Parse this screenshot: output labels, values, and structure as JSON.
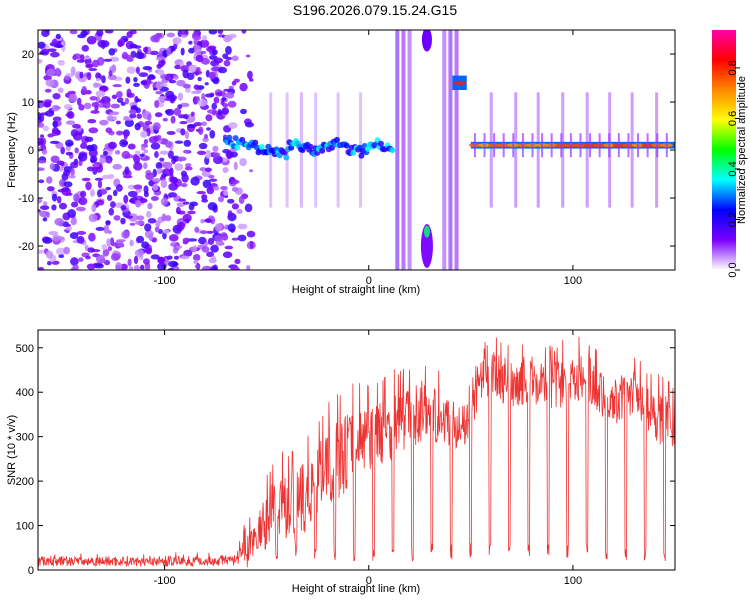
{
  "title": "S196.2026.079.15.24.G15",
  "chart_data": [
    {
      "type": "heatmap",
      "xlabel": "Height of straight line (km)",
      "ylabel": "Frequency (Hz)",
      "xlim": [
        -162,
        150
      ],
      "ylim": [
        -25,
        25
      ],
      "xticks": [
        -100,
        0,
        100
      ],
      "yticks": [
        -20,
        -10,
        0,
        10,
        20
      ],
      "colorbar": {
        "label": "Normalized spectral amplitude",
        "range": [
          0,
          0.95
        ],
        "ticks": [
          "0.0",
          "0.2",
          "0.4",
          "0.6",
          "0.8"
        ],
        "tick_values": [
          0,
          0.2,
          0.4,
          0.6,
          0.8
        ],
        "colors": [
          "#ffffff",
          "#7b00ff",
          "#0000ff",
          "#00ffff",
          "#00ff00",
          "#ffff00",
          "#ff8800",
          "#ff0000",
          "#ff00aa"
        ]
      },
      "features": [
        {
          "name": "noise-region",
          "x": [
            -162,
            -65
          ],
          "f": [
            -25,
            25
          ],
          "level": 0.12
        },
        {
          "name": "carrier-unstable",
          "x": [
            -70,
            12
          ],
          "f_center": 0.5,
          "level": 0.3
        },
        {
          "name": "carrier-stable",
          "x": [
            50,
            150
          ],
          "f_center": 1.0,
          "level": 0.8
        },
        {
          "name": "spur-high",
          "x": [
            41,
            48
          ],
          "f_center": 14,
          "level": 0.85
        },
        {
          "name": "spur-low",
          "x": [
            25,
            32
          ],
          "f_center": -17,
          "level": 0.45
        }
      ]
    },
    {
      "type": "line",
      "xlabel": "Height of straight line (km)",
      "ylabel": "SNR (10 * v/v)",
      "xlim": [
        -162,
        150
      ],
      "ylim": [
        0,
        540
      ],
      "xticks": [
        -100,
        0,
        100
      ],
      "yticks": [
        0,
        100,
        200,
        300,
        400,
        500
      ],
      "color": "#ee3333",
      "envelope": {
        "x": [
          -162,
          -65,
          -60,
          -45,
          -35,
          -25,
          -20,
          -10,
          0,
          10,
          20,
          30,
          40,
          48,
          52,
          60,
          70,
          80,
          90,
          100,
          110,
          120,
          130,
          140,
          150
        ],
        "mean": [
          20,
          20,
          40,
          150,
          140,
          200,
          230,
          270,
          300,
          320,
          350,
          360,
          330,
          320,
          400,
          440,
          420,
          430,
          410,
          440,
          420,
          380,
          400,
          350,
          320
        ],
        "peak": [
          40,
          40,
          120,
          270,
          280,
          330,
          380,
          420,
          430,
          450,
          470,
          480,
          420,
          400,
          500,
          530,
          510,
          520,
          510,
          530,
          520,
          470,
          480,
          450,
          420
        ]
      },
      "dip_spacing_km": 9.5,
      "dip_start_km": -55,
      "dip_floor": 20
    }
  ]
}
